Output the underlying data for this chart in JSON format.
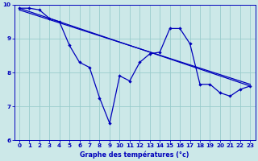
{
  "bg_color": "#cce8e8",
  "line_color": "#0000bb",
  "grid_color": "#99cccc",
  "xlim": [
    -0.5,
    23.5
  ],
  "ylim": [
    6,
    10
  ],
  "xticks": [
    0,
    1,
    2,
    3,
    4,
    5,
    6,
    7,
    8,
    9,
    10,
    11,
    12,
    13,
    14,
    15,
    16,
    17,
    18,
    19,
    20,
    21,
    22,
    23
  ],
  "yticks": [
    6,
    7,
    8,
    9,
    10
  ],
  "line1_x": [
    0,
    1,
    2,
    3,
    4,
    5,
    6,
    7,
    8,
    9,
    10,
    11,
    12,
    13,
    14,
    15,
    16,
    17,
    18,
    19,
    20,
    21,
    22,
    23
  ],
  "line1_y": [
    9.9,
    9.9,
    9.85,
    9.6,
    9.5,
    8.8,
    8.3,
    8.15,
    7.25,
    6.5,
    7.9,
    7.75,
    8.3,
    8.55,
    8.6,
    9.3,
    9.3,
    8.85,
    7.65,
    7.65,
    7.4,
    7.3,
    7.5,
    7.6
  ],
  "trend1_x": [
    0,
    23
  ],
  "trend1_y": [
    9.9,
    7.6
  ],
  "trend2_x": [
    0,
    23
  ],
  "trend2_y": [
    9.85,
    7.65
  ],
  "xlabel": "Graphe des températures (°c)"
}
